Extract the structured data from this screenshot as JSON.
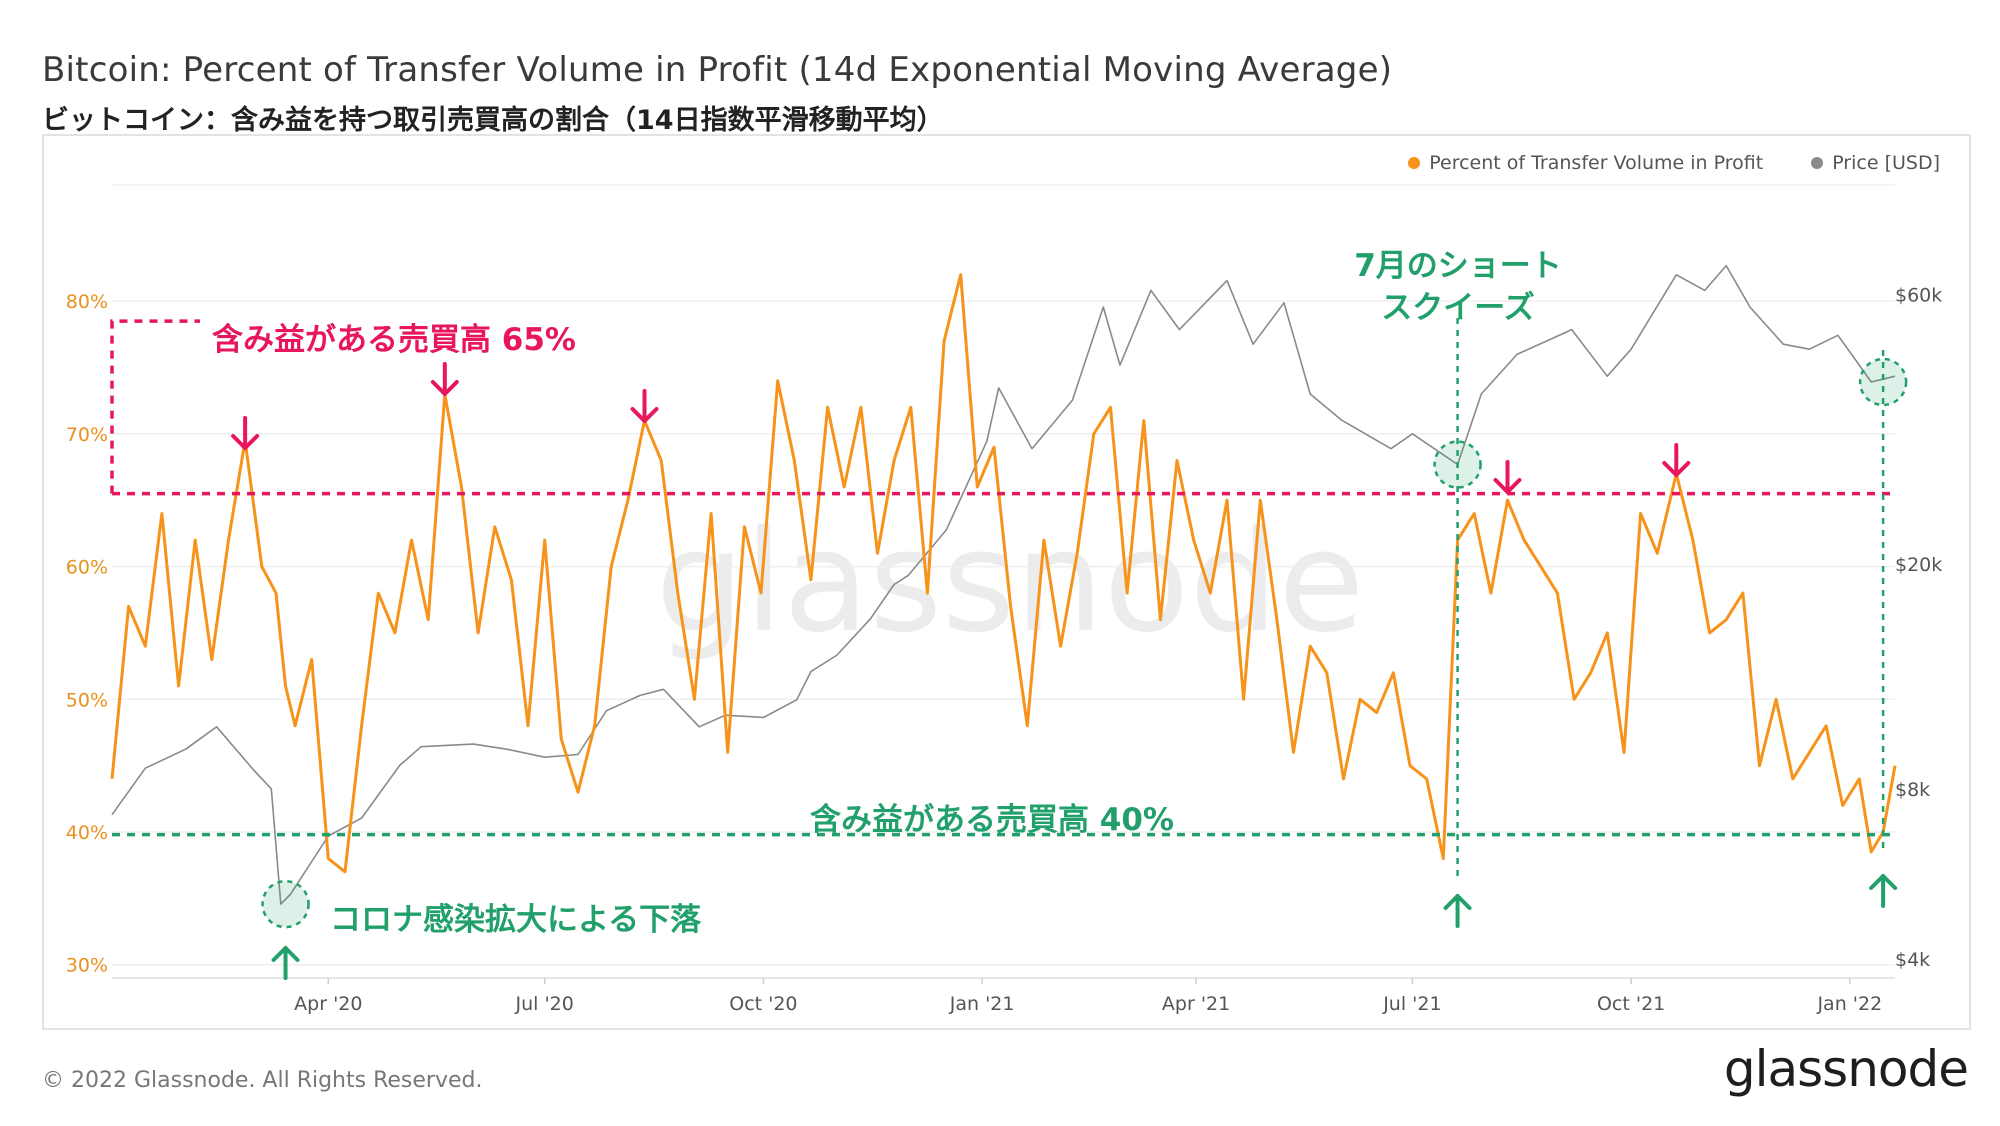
{
  "header": {
    "title": "Bitcoin: Percent of Transfer Volume in Profit (14d Exponential Moving Average)",
    "subtitle": "ビットコイン：含み益を持つ取引売買高の割合（14日指数平滑移動平均）"
  },
  "legend": {
    "series1": "Percent of Transfer Volume in Profit",
    "series2": "Price [USD]"
  },
  "watermark": "glassnode",
  "footer": {
    "copyright": "© 2022 Glassnode. All Rights Reserved.",
    "brand": "glassnode"
  },
  "colors": {
    "profit": "#f7931a",
    "price": "#8a8a8a",
    "pink": "#e8155f",
    "green": "#22a06b",
    "left_axis_text": "#e8911f",
    "right_axis_text": "#555555"
  },
  "annotations": {
    "line65_label": "含み益がある売買高 65%",
    "line40_label": "含み益がある売買高 40%",
    "covid_label": "コロナ感染拡大による下落",
    "squeeze_label_1": "7月のショート",
    "squeeze_label_2": "スクイーズ"
  },
  "chart_data": {
    "type": "line",
    "title": "Bitcoin: Percent of Transfer Volume in Profit (14d Exponential Moving Average)",
    "x_ticks": [
      "Apr '20",
      "Jul '20",
      "Oct '20",
      "Jan '21",
      "Apr '21",
      "Jul '21",
      "Oct '21",
      "Jan '22"
    ],
    "x_range": [
      "2020-01-01",
      "2022-01-20"
    ],
    "y_left": {
      "label": "",
      "ticks": [
        "30%",
        "40%",
        "50%",
        "60%",
        "70%",
        "80%"
      ],
      "range": [
        29,
        88
      ]
    },
    "y_right": {
      "label": "",
      "scale": "log",
      "ticks": [
        "$4k",
        "$8k",
        "$20k",
        "$60k"
      ],
      "tick_values": [
        4000,
        8000,
        20000,
        60000
      ],
      "range": [
        3700,
        90000
      ]
    },
    "reference_lines": [
      {
        "name": "65% line",
        "value": 65.5,
        "axis": "left"
      },
      {
        "name": "40% line",
        "value": 39.8,
        "axis": "left"
      }
    ],
    "series": [
      {
        "name": "Percent of Transfer Volume in Profit",
        "axis": "left",
        "dates": [
          "2020-01-01",
          "2020-01-08",
          "2020-01-15",
          "2020-01-22",
          "2020-01-29",
          "2020-02-05",
          "2020-02-12",
          "2020-02-19",
          "2020-02-26",
          "2020-03-04",
          "2020-03-10",
          "2020-03-14",
          "2020-03-18",
          "2020-03-25",
          "2020-04-01",
          "2020-04-08",
          "2020-04-15",
          "2020-04-22",
          "2020-04-29",
          "2020-05-06",
          "2020-05-13",
          "2020-05-20",
          "2020-05-27",
          "2020-06-03",
          "2020-06-10",
          "2020-06-17",
          "2020-06-24",
          "2020-07-01",
          "2020-07-08",
          "2020-07-15",
          "2020-07-22",
          "2020-07-29",
          "2020-08-05",
          "2020-08-12",
          "2020-08-19",
          "2020-08-26",
          "2020-09-02",
          "2020-09-09",
          "2020-09-16",
          "2020-09-23",
          "2020-09-30",
          "2020-10-07",
          "2020-10-14",
          "2020-10-21",
          "2020-10-28",
          "2020-11-04",
          "2020-11-11",
          "2020-11-18",
          "2020-11-25",
          "2020-12-02",
          "2020-12-09",
          "2020-12-16",
          "2020-12-23",
          "2020-12-30",
          "2021-01-06",
          "2021-01-13",
          "2021-01-20",
          "2021-01-27",
          "2021-02-03",
          "2021-02-10",
          "2021-02-17",
          "2021-02-24",
          "2021-03-03",
          "2021-03-10",
          "2021-03-17",
          "2021-03-24",
          "2021-03-31",
          "2021-04-07",
          "2021-04-14",
          "2021-04-21",
          "2021-04-28",
          "2021-05-05",
          "2021-05-12",
          "2021-05-19",
          "2021-05-26",
          "2021-06-02",
          "2021-06-09",
          "2021-06-16",
          "2021-06-23",
          "2021-06-30",
          "2021-07-07",
          "2021-07-14",
          "2021-07-20",
          "2021-07-27",
          "2021-08-03",
          "2021-08-10",
          "2021-08-17",
          "2021-08-24",
          "2021-08-31",
          "2021-09-07",
          "2021-09-14",
          "2021-09-21",
          "2021-09-28",
          "2021-10-05",
          "2021-10-12",
          "2021-10-20",
          "2021-10-27",
          "2021-11-03",
          "2021-11-10",
          "2021-11-17",
          "2021-11-24",
          "2021-12-01",
          "2021-12-08",
          "2021-12-15",
          "2021-12-22",
          "2021-12-29",
          "2022-01-05",
          "2022-01-10",
          "2022-01-15",
          "2022-01-20"
        ],
        "values": [
          44,
          57,
          54,
          64,
          51,
          62,
          53,
          62,
          69.5,
          60,
          58,
          51,
          48,
          53,
          38,
          37,
          48,
          58,
          55,
          62,
          56,
          73,
          66,
          55,
          63,
          59,
          48,
          62,
          47,
          43,
          48,
          60,
          65,
          71,
          68,
          58,
          50,
          64,
          46,
          63,
          58,
          74,
          68,
          59,
          72,
          66,
          72,
          61,
          68,
          72,
          58,
          77,
          82,
          66,
          69,
          57,
          48,
          62,
          54,
          61,
          70,
          72,
          58,
          71,
          56,
          68,
          62,
          58,
          65,
          50,
          65,
          56,
          46,
          54,
          52,
          44,
          50,
          49,
          52,
          45,
          44,
          38,
          62,
          64,
          58,
          65,
          62,
          60,
          58,
          50,
          52,
          55,
          46,
          64,
          61,
          67,
          62,
          55,
          56,
          58,
          45,
          50,
          44,
          46,
          48,
          42,
          44,
          38.5,
          40,
          45
        ]
      },
      {
        "name": "Price [USD]",
        "axis": "right",
        "dates": [
          "2020-01-01",
          "2020-01-15",
          "2020-02-01",
          "2020-02-14",
          "2020-03-01",
          "2020-03-08",
          "2020-03-12",
          "2020-03-16",
          "2020-04-01",
          "2020-04-15",
          "2020-05-01",
          "2020-05-10",
          "2020-06-01",
          "2020-06-15",
          "2020-07-01",
          "2020-07-15",
          "2020-07-27",
          "2020-08-10",
          "2020-08-20",
          "2020-09-04",
          "2020-09-15",
          "2020-10-01",
          "2020-10-15",
          "2020-10-21",
          "2020-11-01",
          "2020-11-15",
          "2020-11-25",
          "2020-12-01",
          "2020-12-17",
          "2021-01-03",
          "2021-01-08",
          "2021-01-22",
          "2021-02-08",
          "2021-02-21",
          "2021-02-28",
          "2021-03-13",
          "2021-03-25",
          "2021-04-14",
          "2021-04-25",
          "2021-05-08",
          "2021-05-19",
          "2021-06-01",
          "2021-06-22",
          "2021-07-01",
          "2021-07-20",
          "2021-07-30",
          "2021-08-14",
          "2021-09-06",
          "2021-09-21",
          "2021-10-01",
          "2021-10-20",
          "2021-11-01",
          "2021-11-10",
          "2021-11-20",
          "2021-12-04",
          "2021-12-15",
          "2021-12-27",
          "2022-01-05",
          "2022-01-10",
          "2022-01-20"
        ],
        "values": [
          7200,
          8700,
          9400,
          10300,
          8600,
          8000,
          5000,
          5200,
          6600,
          7100,
          8800,
          9500,
          9600,
          9400,
          9100,
          9200,
          11000,
          11700,
          12000,
          10300,
          10800,
          10700,
          11500,
          12900,
          13800,
          16000,
          18400,
          19100,
          23000,
          33000,
          41000,
          32000,
          39000,
          57000,
          45000,
          61000,
          52000,
          63500,
          49000,
          58000,
          40000,
          36000,
          32000,
          34000,
          30000,
          40000,
          47000,
          52000,
          43000,
          48000,
          65000,
          61000,
          67500,
          57000,
          49000,
          48000,
          50800,
          45000,
          42000,
          43000
        ]
      }
    ]
  }
}
